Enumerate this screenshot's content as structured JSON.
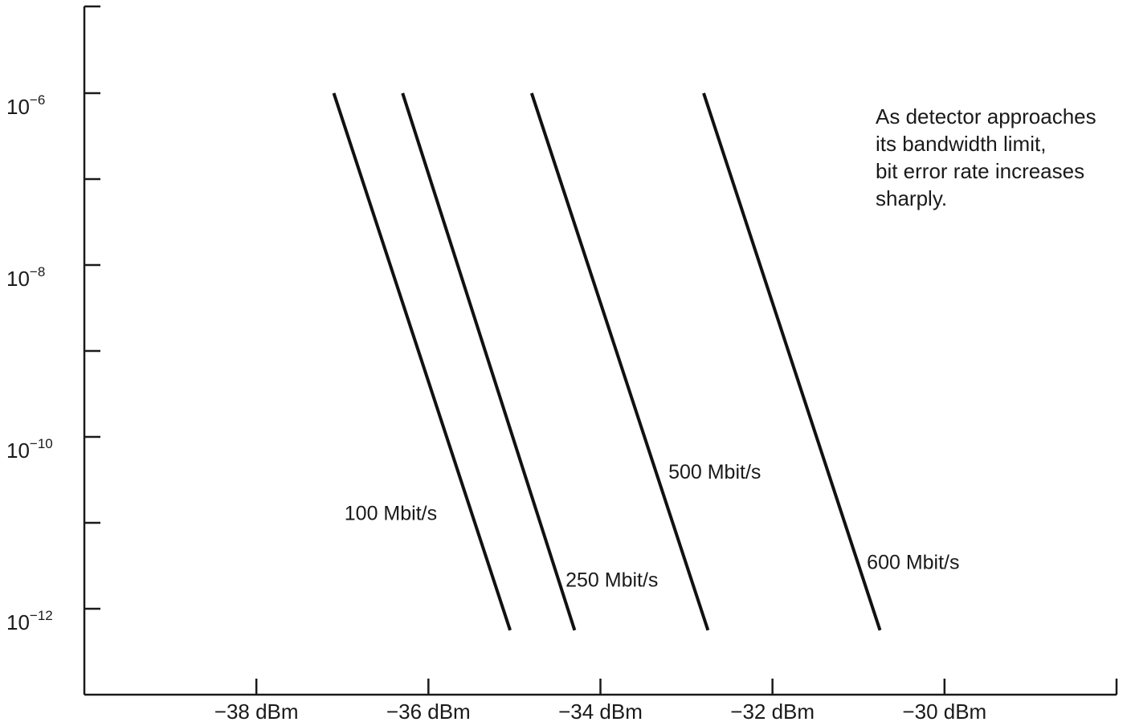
{
  "chart_data": {
    "type": "line",
    "title": "",
    "xlabel": "",
    "ylabel": "",
    "x_scale": "linear",
    "y_scale": "log",
    "xlim": [
      -40,
      -28
    ],
    "ylim_exponent": [
      -13,
      -5
    ],
    "x_ticks": [
      {
        "value": -38,
        "label": "−38 dBm"
      },
      {
        "value": -36,
        "label": "−36 dBm"
      },
      {
        "value": -34,
        "label": "−34 dBm"
      },
      {
        "value": -32,
        "label": "−32 dBm"
      },
      {
        "value": -30,
        "label": "−30 dBm"
      }
    ],
    "y_ticks_labeled": [
      {
        "exponent": -6,
        "base": "10",
        "sup": "−6"
      },
      {
        "exponent": -8,
        "base": "10",
        "sup": "−8"
      },
      {
        "exponent": -10,
        "base": "10",
        "sup": "−10"
      },
      {
        "exponent": -12,
        "base": "10",
        "sup": "−12"
      }
    ],
    "y_ticks_minor_exponents": [
      -7,
      -9,
      -11
    ],
    "y_axis_top_exponent": -5,
    "grid": false,
    "legend": "none",
    "series": [
      {
        "name": "100 Mbit/s",
        "points": [
          {
            "x": -37.1,
            "y_exp": -6
          },
          {
            "x": -35.05,
            "y_exp": -12.25
          }
        ]
      },
      {
        "name": "250 Mbit/s",
        "points": [
          {
            "x": -36.3,
            "y_exp": -6
          },
          {
            "x": -34.3,
            "y_exp": -12.25
          }
        ]
      },
      {
        "name": "500 Mbit/s",
        "points": [
          {
            "x": -34.8,
            "y_exp": -6
          },
          {
            "x": -32.75,
            "y_exp": -12.25
          }
        ]
      },
      {
        "name": "600 Mbit/s",
        "points": [
          {
            "x": -32.8,
            "y_exp": -6
          },
          {
            "x": -30.75,
            "y_exp": -12.25
          }
        ]
      }
    ],
    "annotation": [
      "As detector approaches",
      "its bandwidth limit,",
      "bit error rate increases",
      "sharply."
    ],
    "line_color": "#111111"
  }
}
